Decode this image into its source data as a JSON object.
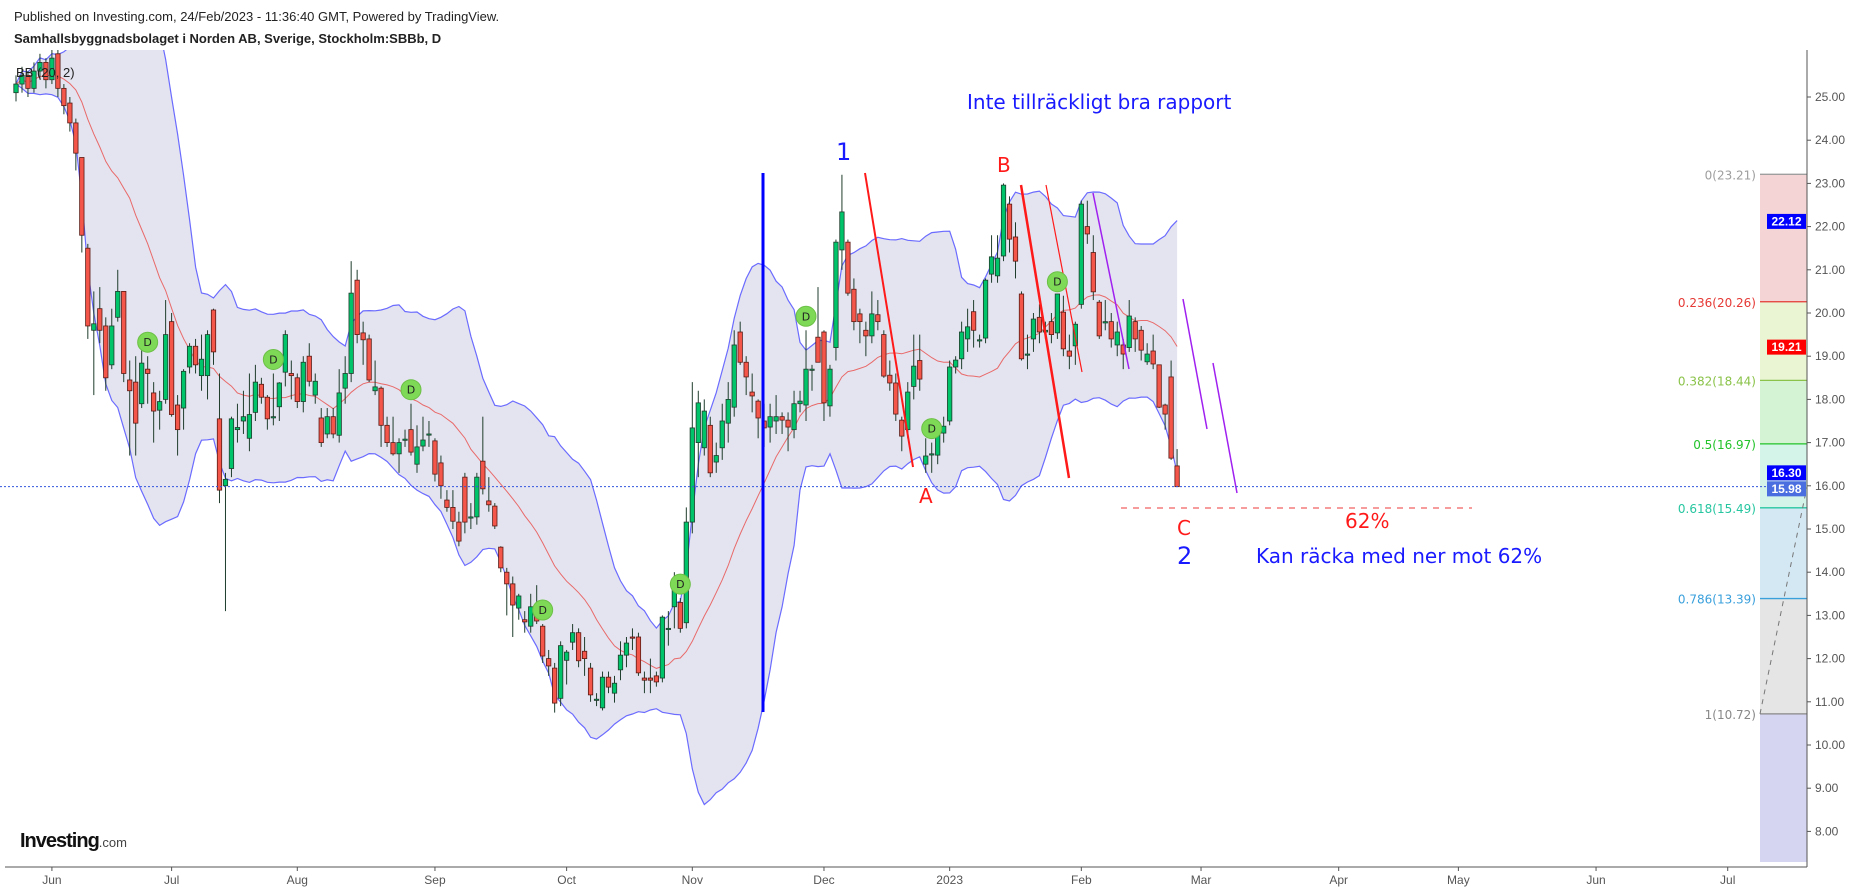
{
  "header": {
    "published": "Published on Investing.com, 24/Feb/2023 - 11:36:40 GMT, Powered by TradingView.",
    "symbol": "Samhallsbyggnadsbolaget i Norden AB, Sverige, Stockholm:SBBb, D"
  },
  "indicator_label": "BB (20, 2)",
  "logo": {
    "main": "Investing",
    "suffix": ".com"
  },
  "annotations": {
    "report_note": "Inte tillräckligt bra rapport",
    "wave1": "1",
    "waveA": "A",
    "waveB": "B",
    "waveC": "C",
    "wave2": "2",
    "pct62": "62%",
    "target_note": "Kan räcka med ner mot 62%",
    "dividend_marker": "D"
  },
  "colors": {
    "up": "#00c46a",
    "down": "#f5564a",
    "bb_fill": "#e4e4f0",
    "bb_band": "#6b6bff",
    "bb_mid": "#e86a6a",
    "annotation_blue": "#1a1aff",
    "annotation_red": "#ff1a1a",
    "annotation_purple": "#a020f0"
  },
  "chart_data": {
    "type": "candlestick",
    "indicator": "Bollinger Bands (20, 2)",
    "ylim": [
      7.3,
      25.8
    ],
    "y_ticks": [
      "8.00",
      "9.00",
      "10.00",
      "11.00",
      "12.00",
      "13.00",
      "14.00",
      "15.00",
      "16.00",
      "17.00",
      "18.00",
      "19.00",
      "20.00",
      "21.00",
      "22.00",
      "23.00",
      "24.00",
      "25.00"
    ],
    "x_ticks": [
      {
        "label": "Jun",
        "bar": 6
      },
      {
        "label": "Jul",
        "bar": 26
      },
      {
        "label": "Aug",
        "bar": 47
      },
      {
        "label": "Sep",
        "bar": 70
      },
      {
        "label": "Oct",
        "bar": 92
      },
      {
        "label": "Nov",
        "bar": 113
      },
      {
        "label": "Dec",
        "bar": 135
      },
      {
        "label": "2023",
        "bar": 156
      },
      {
        "label": "Feb",
        "bar": 178
      },
      {
        "label": "Mar",
        "bar": 198
      },
      {
        "label": "Apr",
        "bar": 221
      },
      {
        "label": "May",
        "bar": 241
      },
      {
        "label": "Jun",
        "bar": 264
      },
      {
        "label": "Jul",
        "bar": 286
      }
    ],
    "ohlc": [
      [
        25.1,
        25.5,
        24.9,
        25.3
      ],
      [
        25.3,
        25.7,
        25.1,
        25.5
      ],
      [
        25.5,
        25.6,
        25.0,
        25.2
      ],
      [
        25.2,
        25.8,
        25.1,
        25.6
      ],
      [
        25.6,
        26.0,
        25.4,
        25.8
      ],
      [
        25.8,
        25.9,
        25.2,
        25.4
      ],
      [
        25.4,
        26.1,
        25.3,
        25.9
      ],
      [
        26.0,
        26.2,
        25.0,
        25.2
      ],
      [
        25.2,
        25.3,
        24.6,
        24.8
      ],
      [
        24.86,
        25.0,
        24.2,
        24.4
      ],
      [
        24.4,
        24.5,
        23.3,
        23.7
      ],
      [
        23.6,
        23.6,
        21.4,
        21.8
      ],
      [
        21.5,
        21.6,
        19.4,
        19.7
      ],
      [
        19.6,
        20.5,
        18.1,
        19.75
      ],
      [
        20.1,
        20.6,
        19.3,
        19.6
      ],
      [
        19.7,
        19.9,
        18.2,
        18.5
      ],
      [
        18.8,
        20.1,
        18.7,
        19.7
      ],
      [
        19.9,
        21.0,
        19.8,
        20.5
      ],
      [
        20.5,
        20.5,
        18.4,
        18.6
      ],
      [
        18.45,
        18.9,
        16.7,
        18.2
      ],
      [
        18.4,
        19.0,
        16.7,
        17.45
      ],
      [
        17.9,
        19.2,
        17.8,
        18.84
      ],
      [
        18.7,
        19.0,
        17.9,
        18.6
      ],
      [
        18.15,
        18.4,
        17.0,
        17.73
      ],
      [
        17.75,
        18.2,
        17.3,
        17.95
      ],
      [
        18.0,
        20.3,
        17.9,
        19.5
      ],
      [
        19.8,
        20.0,
        17.6,
        17.65
      ],
      [
        17.87,
        18.1,
        16.7,
        17.3
      ],
      [
        17.8,
        18.7,
        17.3,
        18.65
      ],
      [
        18.75,
        19.3,
        18.6,
        19.23
      ],
      [
        19.23,
        19.4,
        18.6,
        18.8
      ],
      [
        18.55,
        19.5,
        18.2,
        18.93
      ],
      [
        18.55,
        19.6,
        18.0,
        19.5
      ],
      [
        20.07,
        20.1,
        18.8,
        19.1
      ],
      [
        17.55,
        18.6,
        15.6,
        15.9
      ],
      [
        16.0,
        16.3,
        13.1,
        16.15
      ],
      [
        16.4,
        17.6,
        16.2,
        17.55
      ],
      [
        17.3,
        17.9,
        17.0,
        17.35
      ],
      [
        17.5,
        18.2,
        17.2,
        17.6
      ],
      [
        17.1,
        18.6,
        16.8,
        17.65
      ],
      [
        17.7,
        18.8,
        17.5,
        18.4
      ],
      [
        18.35,
        18.5,
        17.9,
        18.05
      ],
      [
        18.05,
        18.1,
        17.3,
        17.55
      ],
      [
        17.6,
        18.6,
        17.4,
        17.6
      ],
      [
        17.83,
        18.4,
        17.5,
        18.38
      ],
      [
        18.63,
        19.6,
        18.3,
        19.5
      ],
      [
        18.6,
        18.9,
        18.0,
        18.55
      ],
      [
        18.5,
        18.6,
        17.8,
        17.95
      ],
      [
        17.95,
        19.0,
        17.7,
        18.86
      ],
      [
        19.0,
        19.3,
        18.3,
        18.42
      ],
      [
        18.1,
        18.6,
        17.9,
        18.42
      ],
      [
        17.57,
        17.8,
        16.9,
        17.0
      ],
      [
        17.2,
        17.8,
        17.1,
        17.6
      ],
      [
        17.6,
        17.8,
        17.1,
        17.2
      ],
      [
        17.17,
        18.7,
        17.0,
        18.15
      ],
      [
        18.26,
        19.0,
        17.9,
        18.6
      ],
      [
        18.6,
        21.2,
        18.4,
        20.46
      ],
      [
        20.76,
        21.0,
        19.3,
        19.5
      ],
      [
        19.54,
        19.8,
        18.8,
        19.38
      ],
      [
        19.4,
        19.5,
        18.4,
        18.45
      ],
      [
        18.2,
        18.9,
        18.1,
        18.29
      ],
      [
        18.26,
        18.3,
        16.9,
        17.4
      ],
      [
        17.4,
        17.6,
        16.9,
        17.0
      ],
      [
        17.0,
        17.6,
        16.7,
        16.74
      ],
      [
        16.74,
        17.1,
        16.3,
        17.0
      ],
      [
        17.08,
        17.3,
        16.9,
        17.08
      ],
      [
        17.3,
        17.9,
        16.7,
        16.78
      ],
      [
        16.5,
        17.4,
        16.3,
        16.9
      ],
      [
        16.92,
        17.6,
        16.8,
        17.06
      ],
      [
        17.2,
        17.5,
        16.9,
        17.2
      ],
      [
        17.04,
        17.1,
        16.1,
        16.27
      ],
      [
        16.53,
        16.7,
        15.7,
        16.0
      ],
      [
        15.67,
        15.9,
        15.4,
        15.5
      ],
      [
        15.5,
        15.9,
        15.0,
        15.18
      ],
      [
        15.16,
        15.4,
        14.6,
        14.72
      ],
      [
        16.2,
        16.3,
        14.9,
        15.16
      ],
      [
        15.28,
        15.6,
        15.0,
        15.28
      ],
      [
        15.28,
        16.3,
        15.1,
        16.2
      ],
      [
        16.57,
        17.6,
        15.8,
        15.93
      ],
      [
        15.65,
        16.2,
        15.4,
        15.56
      ],
      [
        15.53,
        15.6,
        15.0,
        15.07
      ],
      [
        14.58,
        14.6,
        14.0,
        14.1
      ],
      [
        14.0,
        14.1,
        13.0,
        13.73
      ],
      [
        13.73,
        13.9,
        12.5,
        13.24
      ],
      [
        13.17,
        13.5,
        12.9,
        13.45
      ],
      [
        12.9,
        13.1,
        12.6,
        12.85
      ],
      [
        12.75,
        13.5,
        12.6,
        13.2
      ],
      [
        13.2,
        13.7,
        12.8,
        12.87
      ],
      [
        12.75,
        12.8,
        11.9,
        12.06
      ],
      [
        12.0,
        12.2,
        11.6,
        11.83
      ],
      [
        11.78,
        11.9,
        10.75,
        10.97
      ],
      [
        11.08,
        12.4,
        10.9,
        12.3
      ],
      [
        11.96,
        12.2,
        11.4,
        12.15
      ],
      [
        12.38,
        12.8,
        12.2,
        12.6
      ],
      [
        12.6,
        12.7,
        11.8,
        11.95
      ],
      [
        12.17,
        12.5,
        11.6,
        12.0
      ],
      [
        11.78,
        11.9,
        11.0,
        11.16
      ],
      [
        11.06,
        11.2,
        10.9,
        11.06
      ],
      [
        10.86,
        11.7,
        10.8,
        11.57
      ],
      [
        11.57,
        11.7,
        11.2,
        11.34
      ],
      [
        11.2,
        11.6,
        10.98,
        11.43
      ],
      [
        11.74,
        12.4,
        11.5,
        12.08
      ],
      [
        12.08,
        12.5,
        11.8,
        12.36
      ],
      [
        12.5,
        12.7,
        12.2,
        12.48
      ],
      [
        12.5,
        12.6,
        11.6,
        11.67
      ],
      [
        11.55,
        11.7,
        11.2,
        11.5
      ],
      [
        11.55,
        12.0,
        11.2,
        11.5
      ],
      [
        11.6,
        11.7,
        11.35,
        11.46
      ],
      [
        11.55,
        13.0,
        11.45,
        12.96
      ],
      [
        12.7,
        13.1,
        12.3,
        12.7
      ],
      [
        13.2,
        14.0,
        12.7,
        13.6
      ],
      [
        13.3,
        13.4,
        12.6,
        12.7
      ],
      [
        12.83,
        15.5,
        12.7,
        15.16
      ],
      [
        15.16,
        18.4,
        14.9,
        17.34
      ],
      [
        17.0,
        18.2,
        16.2,
        17.92
      ],
      [
        16.88,
        18.0,
        16.7,
        17.73
      ],
      [
        17.4,
        17.6,
        16.2,
        16.3
      ],
      [
        16.55,
        17.0,
        16.3,
        16.7
      ],
      [
        16.88,
        17.9,
        16.6,
        17.5
      ],
      [
        17.45,
        18.4,
        17.0,
        18.0
      ],
      [
        17.82,
        19.6,
        17.6,
        19.26
      ],
      [
        19.56,
        19.8,
        18.8,
        18.86
      ],
      [
        18.86,
        19.0,
        18.1,
        18.52
      ],
      [
        18.17,
        18.6,
        17.7,
        18.08
      ],
      [
        17.96,
        18.0,
        17.1,
        17.57
      ],
      [
        17.5,
        17.9,
        16.9,
        17.34
      ],
      [
        17.36,
        17.9,
        17.0,
        17.6
      ],
      [
        17.5,
        18.1,
        17.2,
        17.6
      ],
      [
        17.6,
        17.7,
        17.2,
        17.52
      ],
      [
        17.52,
        17.7,
        16.8,
        17.36
      ],
      [
        17.3,
        18.2,
        17.1,
        17.9
      ],
      [
        17.9,
        18.2,
        17.7,
        17.96
      ],
      [
        17.87,
        19.6,
        17.5,
        18.7
      ],
      [
        18.7,
        18.8,
        18.2,
        18.7
      ],
      [
        19.44,
        20.6,
        18.9,
        18.86
      ],
      [
        19.56,
        19.6,
        17.5,
        17.92
      ],
      [
        17.85,
        18.8,
        17.6,
        18.7
      ],
      [
        19.2,
        21.7,
        18.9,
        21.64
      ],
      [
        21.46,
        23.2,
        21.0,
        22.34
      ],
      [
        21.64,
        21.7,
        20.4,
        20.46
      ],
      [
        20.55,
        20.8,
        19.6,
        19.8
      ],
      [
        19.98,
        20.1,
        19.3,
        19.8
      ],
      [
        19.6,
        19.8,
        19.0,
        19.47
      ],
      [
        19.47,
        20.5,
        19.3,
        19.98
      ],
      [
        19.96,
        20.3,
        19.6,
        19.8
      ],
      [
        19.5,
        19.6,
        18.5,
        18.54
      ],
      [
        18.56,
        18.9,
        18.2,
        18.38
      ],
      [
        18.38,
        18.6,
        17.5,
        17.66
      ],
      [
        17.52,
        17.6,
        16.8,
        17.15
      ],
      [
        17.3,
        18.4,
        17.1,
        18.17
      ],
      [
        18.3,
        19.5,
        18.0,
        18.77
      ],
      [
        18.9,
        19.5,
        18.2,
        18.47
      ],
      [
        16.5,
        17.1,
        16.3,
        16.69
      ],
      [
        16.74,
        17.0,
        16.3,
        16.74
      ],
      [
        16.71,
        17.4,
        16.5,
        17.29
      ],
      [
        17.22,
        17.6,
        17.0,
        17.38
      ],
      [
        17.5,
        18.9,
        17.4,
        18.75
      ],
      [
        18.75,
        19.0,
        18.6,
        18.91
      ],
      [
        18.94,
        19.8,
        18.7,
        19.56
      ],
      [
        19.4,
        20.1,
        19.1,
        19.68
      ],
      [
        20.03,
        20.3,
        19.2,
        19.6
      ],
      [
        19.38,
        19.5,
        19.2,
        19.38
      ],
      [
        19.42,
        20.8,
        19.3,
        20.76
      ],
      [
        20.9,
        21.8,
        20.7,
        21.3
      ],
      [
        20.86,
        21.8,
        20.7,
        21.27
      ],
      [
        21.32,
        23.0,
        21.2,
        22.96
      ],
      [
        22.52,
        22.7,
        21.4,
        21.71
      ],
      [
        21.76,
        22.1,
        20.8,
        21.2
      ],
      [
        20.44,
        20.5,
        18.9,
        18.94
      ],
      [
        19.05,
        19.5,
        18.7,
        19.05
      ],
      [
        19.4,
        20.0,
        19.1,
        19.86
      ],
      [
        19.9,
        20.2,
        19.3,
        19.56
      ],
      [
        19.56,
        19.8,
        19.4,
        19.6
      ],
      [
        19.8,
        20.0,
        19.3,
        19.5
      ],
      [
        19.54,
        20.4,
        19.4,
        20.44
      ],
      [
        20.02,
        20.4,
        19.0,
        19.17
      ],
      [
        19.12,
        19.5,
        18.7,
        19.0
      ],
      [
        19.24,
        19.8,
        18.8,
        19.74
      ],
      [
        20.2,
        22.6,
        20.1,
        22.52
      ],
      [
        22.0,
        22.6,
        21.6,
        21.83
      ],
      [
        21.4,
        21.8,
        20.3,
        20.49
      ],
      [
        20.25,
        20.3,
        19.4,
        19.47
      ],
      [
        19.77,
        20.3,
        19.6,
        19.8
      ],
      [
        19.8,
        20.0,
        19.2,
        19.4
      ],
      [
        19.26,
        19.8,
        19.0,
        19.56
      ],
      [
        19.26,
        19.4,
        18.7,
        19.05
      ],
      [
        19.2,
        20.3,
        19.1,
        19.93
      ],
      [
        19.8,
        19.9,
        19.1,
        19.4
      ],
      [
        19.6,
        19.7,
        18.9,
        19.14
      ],
      [
        18.87,
        19.3,
        18.8,
        19.05
      ],
      [
        19.12,
        19.5,
        18.7,
        18.82
      ],
      [
        18.8,
        18.8,
        17.8,
        17.82
      ],
      [
        17.87,
        17.9,
        17.3,
        17.66
      ],
      [
        18.52,
        18.9,
        16.6,
        16.64
      ],
      [
        16.46,
        16.85,
        15.98,
        15.98
      ]
    ],
    "dividend_bars": [
      22,
      43,
      66,
      88,
      111,
      132,
      153,
      174
    ],
    "price_labels": [
      {
        "value": "22.12",
        "price": 22.12,
        "color": "#0000ff"
      },
      {
        "value": "19.21",
        "price": 19.21,
        "color": "#ff0000"
      },
      {
        "value": "16.30",
        "price": 16.3,
        "color": "#0000ff"
      },
      {
        "value": "15.98",
        "price": 15.98,
        "color": "#4a6ee0"
      }
    ],
    "last_price": 15.98,
    "fibonacci": [
      {
        "label": "0(23.21)",
        "price": 23.21,
        "color": "#9e9e9e",
        "fill": "#f4d4d4"
      },
      {
        "label": "0.236(20.26)",
        "price": 20.26,
        "color": "#e53935",
        "fill": "#eaf5d4"
      },
      {
        "label": "0.382(18.44)",
        "price": 18.44,
        "color": "#8bc34a",
        "fill": "#d4f2d4"
      },
      {
        "label": "0.5(16.97)",
        "price": 16.97,
        "color": "#22c32a",
        "fill": "#d4f4ea"
      },
      {
        "label": "0.618(15.49)",
        "price": 15.49,
        "color": "#26c6a0",
        "fill": "#d4e8f4"
      },
      {
        "label": "0.786(13.39)",
        "price": 13.39,
        "color": "#3aa0dc",
        "fill": "#e5e5e5"
      },
      {
        "label": "1(10.72)",
        "price": 10.72,
        "color": "#888888",
        "fill": "#d5d5f2"
      }
    ],
    "target_level": 15.49
  }
}
